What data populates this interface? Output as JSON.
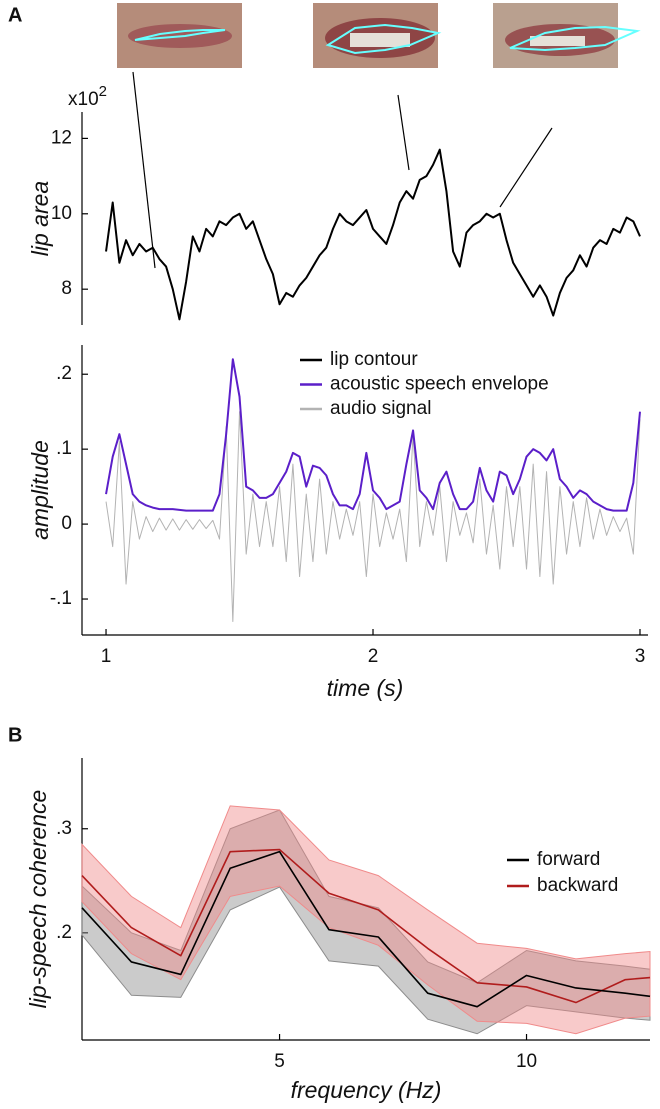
{
  "chart_data": [
    {
      "type": "line",
      "panel": "A",
      "ylabel": "lip area",
      "scale_base": "x10",
      "scale_exp": "2",
      "xlim": [
        0.91,
        3.03
      ],
      "ylim": [
        7.05,
        12.7
      ],
      "yticks": [
        8,
        10,
        12
      ],
      "x": [
        1.0,
        1.025,
        1.05,
        1.075,
        1.1,
        1.125,
        1.15,
        1.175,
        1.2,
        1.225,
        1.25,
        1.275,
        1.3,
        1.325,
        1.35,
        1.375,
        1.4,
        1.425,
        1.45,
        1.475,
        1.5,
        1.525,
        1.55,
        1.575,
        1.6,
        1.625,
        1.65,
        1.675,
        1.7,
        1.725,
        1.75,
        1.775,
        1.8,
        1.825,
        1.85,
        1.875,
        1.9,
        1.925,
        1.95,
        1.975,
        2.0,
        2.025,
        2.05,
        2.075,
        2.1,
        2.125,
        2.15,
        2.175,
        2.2,
        2.225,
        2.25,
        2.275,
        2.3,
        2.325,
        2.35,
        2.375,
        2.4,
        2.425,
        2.45,
        2.475,
        2.5,
        2.525,
        2.55,
        2.575,
        2.6,
        2.625,
        2.65,
        2.675,
        2.7,
        2.725,
        2.75,
        2.775,
        2.8,
        2.825,
        2.85,
        2.875,
        2.9,
        2.925,
        2.95,
        2.975,
        3.0
      ],
      "series": [
        {
          "name": "lip contour",
          "color": "#000000",
          "values": [
            9.0,
            10.3,
            8.7,
            9.3,
            8.9,
            9.2,
            9.0,
            9.1,
            8.8,
            8.6,
            8.0,
            7.2,
            8.2,
            9.4,
            9.0,
            9.6,
            9.4,
            9.8,
            9.7,
            9.9,
            10.0,
            9.6,
            9.8,
            9.3,
            8.8,
            8.4,
            7.6,
            7.9,
            7.8,
            8.1,
            8.3,
            8.6,
            8.9,
            9.1,
            9.6,
            10.0,
            9.8,
            9.7,
            9.9,
            10.1,
            9.6,
            9.4,
            9.2,
            9.7,
            10.3,
            10.6,
            10.4,
            10.9,
            11.0,
            11.3,
            11.7,
            10.6,
            9.0,
            8.6,
            9.5,
            9.7,
            9.8,
            10.0,
            9.9,
            10.0,
            9.3,
            8.7,
            8.4,
            8.1,
            7.8,
            8.1,
            7.8,
            7.3,
            7.9,
            8.3,
            8.5,
            8.9,
            8.6,
            9.1,
            9.3,
            9.2,
            9.6,
            9.5,
            9.9,
            9.8,
            9.4
          ]
        }
      ]
    },
    {
      "type": "line",
      "ylabel": "amplitude",
      "xlabel": "time (s)",
      "legend": "upper right",
      "xlim": [
        0.91,
        3.03
      ],
      "ylim": [
        -0.148,
        0.239
      ],
      "xticks": [
        1,
        2,
        3
      ],
      "yticks": [
        {
          "value": -0.1,
          "label": "-.1"
        },
        0,
        {
          "value": 0.1,
          "label": ".1"
        },
        {
          "value": 0.2,
          "label": ".2"
        }
      ],
      "x": [
        1.0,
        1.025,
        1.05,
        1.075,
        1.1,
        1.125,
        1.15,
        1.175,
        1.2,
        1.225,
        1.25,
        1.275,
        1.3,
        1.325,
        1.35,
        1.375,
        1.4,
        1.425,
        1.45,
        1.475,
        1.5,
        1.525,
        1.55,
        1.575,
        1.6,
        1.625,
        1.65,
        1.675,
        1.7,
        1.725,
        1.75,
        1.775,
        1.8,
        1.825,
        1.85,
        1.875,
        1.9,
        1.925,
        1.95,
        1.975,
        2.0,
        2.025,
        2.05,
        2.075,
        2.1,
        2.125,
        2.15,
        2.175,
        2.2,
        2.225,
        2.25,
        2.275,
        2.3,
        2.325,
        2.35,
        2.375,
        2.4,
        2.425,
        2.45,
        2.475,
        2.5,
        2.525,
        2.55,
        2.575,
        2.6,
        2.625,
        2.65,
        2.675,
        2.7,
        2.725,
        2.75,
        2.775,
        2.8,
        2.825,
        2.85,
        2.875,
        2.9,
        2.925,
        2.95,
        2.975,
        3.0
      ],
      "series": [
        {
          "name": "acoustic speech envelope",
          "color": "#5b1fc9",
          "values": [
            0.04,
            0.09,
            0.12,
            0.08,
            0.04,
            0.03,
            0.025,
            0.022,
            0.02,
            0.02,
            0.02,
            0.019,
            0.018,
            0.018,
            0.018,
            0.018,
            0.018,
            0.04,
            0.12,
            0.22,
            0.17,
            0.05,
            0.045,
            0.035,
            0.035,
            0.04,
            0.055,
            0.07,
            0.095,
            0.09,
            0.05,
            0.078,
            0.075,
            0.065,
            0.04,
            0.025,
            0.025,
            0.02,
            0.04,
            0.095,
            0.045,
            0.035,
            0.02,
            0.025,
            0.03,
            0.08,
            0.125,
            0.045,
            0.035,
            0.02,
            0.055,
            0.07,
            0.04,
            0.02,
            0.02,
            0.03,
            0.075,
            0.045,
            0.03,
            0.07,
            0.065,
            0.04,
            0.06,
            0.09,
            0.1,
            0.095,
            0.085,
            0.1,
            0.06,
            0.05,
            0.035,
            0.045,
            0.04,
            0.03,
            0.025,
            0.02,
            0.018,
            0.018,
            0.018,
            0.055,
            0.15
          ]
        },
        {
          "name": "audio signal",
          "color": "#b3b3b3",
          "values": [
            0.03,
            -0.03,
            0.11,
            -0.08,
            0.03,
            -0.02,
            0.01,
            -0.01,
            0.008,
            -0.008,
            0.007,
            -0.008,
            0.006,
            -0.007,
            0.006,
            -0.006,
            0.005,
            -0.02,
            0.13,
            -0.13,
            0.15,
            -0.04,
            0.04,
            -0.03,
            0.03,
            -0.03,
            0.05,
            -0.05,
            0.08,
            -0.07,
            0.04,
            -0.05,
            0.06,
            -0.04,
            0.03,
            -0.02,
            0.02,
            -0.015,
            0.03,
            -0.07,
            0.04,
            -0.03,
            0.015,
            -0.02,
            0.02,
            -0.05,
            0.12,
            -0.03,
            0.03,
            -0.015,
            0.05,
            -0.05,
            0.03,
            -0.015,
            0.015,
            -0.025,
            0.06,
            -0.04,
            0.025,
            -0.06,
            0.05,
            -0.03,
            0.05,
            -0.06,
            0.08,
            -0.07,
            0.07,
            -0.08,
            0.05,
            -0.04,
            0.03,
            -0.03,
            0.035,
            -0.02,
            0.02,
            -0.015,
            0.01,
            -0.01,
            0.008,
            -0.04,
            0.14
          ]
        }
      ]
    },
    {
      "type": "line",
      "panel": "B",
      "ylabel": "lip-speech coherence",
      "xlabel": "frequency (Hz)",
      "legend": "right",
      "xlim": [
        1,
        12.5
      ],
      "ylim": [
        0.097,
        0.368
      ],
      "xticks": [
        5,
        10
      ],
      "yticks": [
        {
          "value": 0.2,
          "label": ".2"
        },
        {
          "value": 0.3,
          "label": ".3"
        }
      ],
      "x": [
        1,
        2,
        3,
        4,
        5,
        6,
        7,
        8,
        9,
        10,
        11,
        12,
        12.5
      ],
      "series": [
        {
          "name": "forward",
          "color": "#000000",
          "band_color": "#8c8c8c",
          "values": [
            0.224,
            0.172,
            0.16,
            0.262,
            0.278,
            0.203,
            0.196,
            0.142,
            0.129,
            0.159,
            0.147,
            0.142,
            0.139
          ],
          "lower": [
            0.198,
            0.14,
            0.138,
            0.222,
            0.244,
            0.173,
            0.168,
            0.117,
            0.103,
            0.13,
            0.124,
            0.118,
            0.116
          ],
          "upper": [
            0.245,
            0.2,
            0.183,
            0.3,
            0.318,
            0.235,
            0.224,
            0.172,
            0.152,
            0.183,
            0.173,
            0.168,
            0.165
          ]
        },
        {
          "name": "backward",
          "color": "#b01c1c",
          "band_color": "#f08a8a",
          "values": [
            0.255,
            0.205,
            0.178,
            0.278,
            0.28,
            0.238,
            0.222,
            0.185,
            0.152,
            0.148,
            0.133,
            0.155,
            0.157
          ],
          "lower": [
            0.23,
            0.18,
            0.155,
            0.235,
            0.245,
            0.205,
            0.188,
            0.15,
            0.115,
            0.113,
            0.103,
            0.118,
            0.12
          ],
          "upper": [
            0.285,
            0.235,
            0.205,
            0.322,
            0.318,
            0.27,
            0.255,
            0.222,
            0.19,
            0.185,
            0.175,
            0.18,
            0.182
          ]
        }
      ]
    }
  ]
}
